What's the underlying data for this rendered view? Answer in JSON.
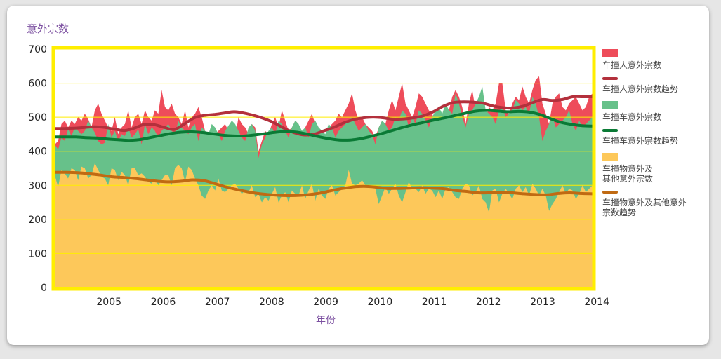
{
  "chart_data": {
    "type": "area",
    "title": "",
    "ylabel": "意外宗数",
    "xlabel": "年份",
    "ylim": [
      0,
      700
    ],
    "yticks": [
      0,
      100,
      200,
      300,
      400,
      500,
      600,
      700
    ],
    "xlim": [
      2004.5,
      2014.42
    ],
    "x_tick_labels": [
      "2005",
      "2006",
      "2007",
      "2008",
      "2009",
      "2010",
      "2011",
      "2012",
      "2013",
      "2014"
    ],
    "stacked": true,
    "grid": true,
    "legend_position": "right",
    "series": [
      {
        "name": "车撞物意外及其他意外宗数",
        "color": "#fdc85a",
        "values": [
          330,
          295,
          345,
          335,
          320,
          350,
          345,
          315,
          355,
          350,
          320,
          330,
          365,
          345,
          325,
          320,
          300,
          350,
          345,
          315,
          340,
          330,
          300,
          350,
          350,
          330,
          335,
          325,
          310,
          305,
          320,
          300,
          315,
          330,
          330,
          300,
          350,
          360,
          350,
          310,
          355,
          345,
          320,
          300,
          270,
          260,
          285,
          300,
          285,
          320,
          285,
          280,
          290,
          300,
          305,
          290,
          275,
          285,
          280,
          300,
          265,
          275,
          250,
          265,
          255,
          275,
          295,
          250,
          270,
          280,
          250,
          285,
          275,
          270,
          300,
          260,
          285,
          305,
          255,
          290,
          270,
          260,
          290,
          300,
          270,
          280,
          290,
          300,
          345,
          305,
          300,
          305,
          315,
          300,
          300,
          295,
          290,
          245,
          270,
          295,
          275,
          290,
          305,
          270,
          250,
          280,
          310,
          290,
          290,
          280,
          300,
          275,
          290,
          285,
          265,
          285,
          260,
          290,
          295,
          280,
          265,
          260,
          290,
          305,
          300,
          270,
          280,
          300,
          260,
          250,
          220,
          285,
          290,
          250,
          275,
          290,
          275,
          260,
          290,
          300,
          280,
          295,
          270,
          305,
          290,
          270,
          290,
          270,
          225,
          245,
          260,
          280,
          300,
          275,
          290,
          285,
          260,
          275,
          300,
          280,
          290,
          300
        ],
        "trend": {
          "name": "车撞物意外及其他意外宗数趋势",
          "color": "#c06a12",
          "values": [
            338,
            338,
            337,
            334,
            330,
            325,
            323,
            320,
            316,
            312,
            310,
            312,
            316,
            314,
            305,
            295,
            287,
            280,
            275,
            272,
            270,
            270,
            272,
            276,
            283,
            290,
            295,
            297,
            295,
            291,
            291,
            292,
            293,
            292,
            290,
            285,
            282,
            278,
            278,
            280,
            278,
            275,
            273,
            272,
            276,
            278,
            276,
            275
          ]
        }
      },
      {
        "name": "车撞车意外宗数",
        "color": "#67c18a",
        "totals": [
          420,
          405,
          440,
          430,
          465,
          445,
          470,
          460,
          450,
          460,
          490,
          470,
          455,
          430,
          420,
          425,
          480,
          440,
          460,
          430,
          450,
          445,
          470,
          440,
          450,
          465,
          420,
          480,
          450,
          470,
          460,
          440,
          460,
          470,
          480,
          460,
          450,
          490,
          470,
          460,
          450,
          470,
          480,
          430,
          470,
          460,
          450,
          480,
          470,
          450,
          430,
          460,
          475,
          490,
          480,
          460,
          440,
          430,
          470,
          480,
          460,
          380,
          420,
          440,
          460,
          470,
          450,
          490,
          480,
          460,
          440,
          470,
          490,
          480,
          460,
          470,
          440,
          480,
          490,
          470,
          460,
          450,
          480,
          470,
          440,
          460,
          470,
          480,
          490,
          500,
          480,
          460,
          470,
          480,
          460,
          450,
          420,
          470,
          490,
          480,
          460,
          470,
          500,
          490,
          520,
          510,
          470,
          500,
          480,
          520,
          510,
          490,
          470,
          500,
          520,
          530,
          510,
          540,
          520,
          510,
          570,
          540,
          500,
          470,
          510,
          520,
          540,
          560,
          590,
          520,
          510,
          500,
          480,
          520,
          530,
          500,
          510,
          520,
          550,
          540,
          520,
          530,
          510,
          560,
          540,
          500,
          430,
          460,
          480,
          500,
          470,
          480,
          490,
          500,
          520,
          480,
          460,
          490,
          470,
          480,
          490,
          500
        ],
        "trend": {
          "name": "车撞车意外宗数趋势",
          "color": "#0a7a35",
          "values": [
            442,
            442,
            442,
            440,
            439,
            436,
            434,
            432,
            434,
            440,
            446,
            452,
            456,
            457,
            455,
            451,
            447,
            445,
            445,
            448,
            452,
            456,
            458,
            456,
            450,
            443,
            437,
            433,
            433,
            437,
            444,
            452,
            461,
            470,
            478,
            485,
            492,
            498,
            505,
            512,
            518,
            520,
            518,
            516,
            517,
            515,
            508,
            496,
            485,
            479,
            475,
            474
          ]
        }
      },
      {
        "name": "车撞人意外宗数",
        "color": "#ee4c5a",
        "totals": [
          420,
          430,
          480,
          490,
          470,
          490,
          480,
          500,
          490,
          510,
          495,
          470,
          520,
          540,
          510,
          490,
          470,
          460,
          500,
          450,
          470,
          480,
          520,
          470,
          500,
          510,
          480,
          520,
          500,
          490,
          520,
          510,
          580,
          530,
          520,
          540,
          510,
          500,
          480,
          520,
          470,
          500,
          510,
          530,
          500,
          460,
          430,
          470,
          450,
          460,
          470,
          480,
          460,
          430,
          440,
          500,
          480,
          470,
          450,
          480,
          470,
          400,
          430,
          460,
          450,
          480,
          500,
          470,
          520,
          490,
          460,
          470,
          490,
          480,
          450,
          470,
          490,
          510,
          480,
          470,
          460,
          440,
          470,
          480,
          490,
          510,
          500,
          520,
          540,
          570,
          520,
          490,
          500,
          480,
          470,
          460,
          440,
          470,
          490,
          480,
          520,
          550,
          520,
          560,
          600,
          540,
          520,
          500,
          530,
          570,
          560,
          540,
          520,
          510,
          480,
          500,
          470,
          540,
          520,
          560,
          580,
          560,
          530,
          480,
          540,
          580,
          520,
          510,
          470,
          500,
          530,
          520,
          540,
          600,
          600,
          520,
          510,
          540,
          560,
          550,
          590,
          560,
          540,
          580,
          610,
          620,
          540,
          510,
          480,
          540,
          560,
          570,
          530,
          520,
          540,
          550,
          560,
          540,
          520,
          530,
          560,
          570
        ]
      }
    ],
    "trend_red": {
      "name": "车撞人意外宗数趋势",
      "color": "#b3303c",
      "values": [
        467,
        467,
        468,
        470,
        472,
        470,
        465,
        461,
        468,
        479,
        478,
        470,
        464,
        480,
        498,
        505,
        508,
        512,
        516,
        512,
        505,
        496,
        484,
        468,
        455,
        448,
        450,
        460,
        470,
        483,
        493,
        498,
        500,
        498,
        494,
        495,
        498,
        504,
        516,
        532,
        543,
        545,
        544,
        541,
        533,
        528,
        527,
        532,
        543,
        552,
        549,
        552,
        560,
        560,
        560
      ]
    }
  },
  "legend": {
    "items": [
      {
        "label": "车撞人意外宗数",
        "kind": "box",
        "color": "#ee4c5a"
      },
      {
        "label": "车撞人意外宗数趋势",
        "kind": "line",
        "color": "#b3303c"
      },
      {
        "label": "车撞车意外宗数",
        "kind": "box",
        "color": "#67c18a"
      },
      {
        "label": "车撞车意外宗数趋势",
        "kind": "line",
        "color": "#0a7a35"
      },
      {
        "label": "车撞物意外及\n其他意外宗数",
        "kind": "box",
        "color": "#fdc85a"
      },
      {
        "label": "车撞物意外及其他意外\n宗数趋势",
        "kind": "line",
        "color": "#c06a12"
      }
    ]
  },
  "colors": {
    "frame": "#ffee00",
    "axis_title": "#7b4fa0"
  }
}
